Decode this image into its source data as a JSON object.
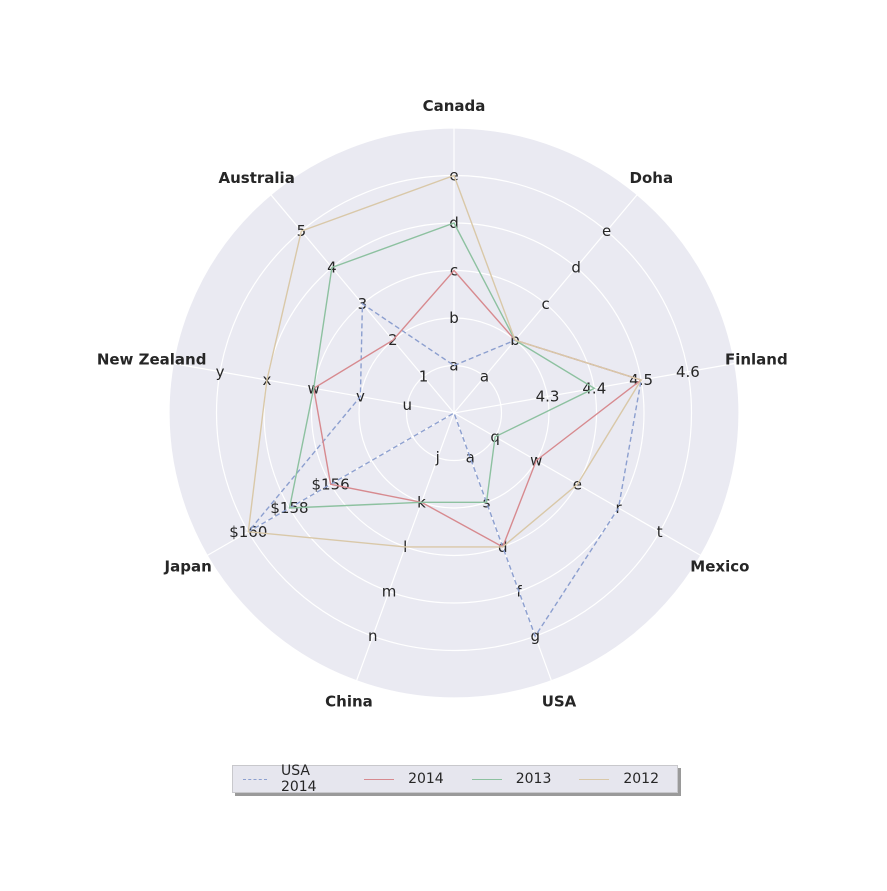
{
  "chart_data": {
    "type": "radar",
    "axes": [
      "Canada",
      "Doha",
      "Finland",
      "Mexico",
      "USA",
      "China",
      "Japan",
      "New Zealand",
      "Australia"
    ],
    "tick_labels": {
      "Canada": [
        "a",
        "b",
        "c",
        "d",
        "e"
      ],
      "Doha": [
        "a",
        "b",
        "c",
        "d",
        "e"
      ],
      "Finland": [
        "4.3",
        "4.4",
        "4.5",
        "4.6"
      ],
      "Mexico": [
        "q",
        "w",
        "e",
        "r",
        "t"
      ],
      "USA": [
        "a",
        "s",
        "d",
        "f",
        "g"
      ],
      "China": [
        "j",
        "k",
        "l",
        "m",
        "n"
      ],
      "Japan": [
        "$156",
        "$158",
        "$160"
      ],
      "New Zealand": [
        "u",
        "v",
        "w",
        "x",
        "y"
      ],
      "Australia": [
        "1",
        "2",
        "3",
        "4",
        "5"
      ]
    },
    "rlim": [
      0,
      6
    ],
    "grid": true,
    "legend_position": "bottom-center",
    "series": [
      {
        "name": "USA 2014",
        "color": "#8c9fcf",
        "style": "dashed",
        "values": [
          1,
          2,
          4,
          4,
          5,
          0,
          5,
          2,
          3
        ]
      },
      {
        "name": "2014",
        "color": "#d78a8f",
        "style": "solid",
        "values": [
          3,
          2,
          4,
          2,
          3,
          2,
          3,
          3,
          2
        ]
      },
      {
        "name": "2013",
        "color": "#8dc1a0",
        "style": "solid",
        "values": [
          4,
          2,
          3,
          1,
          2,
          2,
          4,
          3,
          4
        ]
      },
      {
        "name": "2012",
        "color": "#d9c8a8",
        "style": "solid",
        "values": [
          5,
          2,
          4,
          3,
          3,
          3,
          5,
          4,
          5
        ]
      }
    ]
  }
}
